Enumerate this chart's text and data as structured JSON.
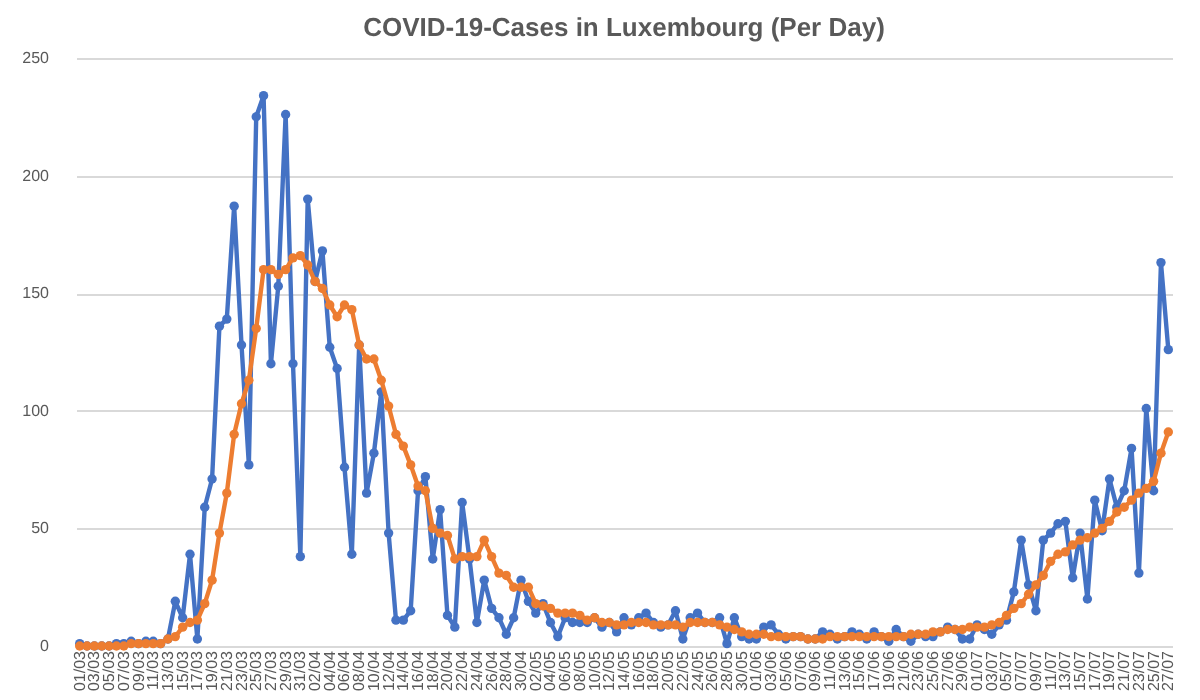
{
  "chart_data": {
    "type": "line",
    "title": "COVID-19-Cases in Luxembourg (Per Day)",
    "categories": [
      "01/03",
      null,
      "03/03",
      null,
      "05/03",
      null,
      "07/03",
      null,
      "09/03",
      null,
      "11/03",
      null,
      "13/03",
      null,
      "15/03",
      null,
      "17/03",
      null,
      "19/03",
      null,
      "21/03",
      null,
      "23/03",
      null,
      "25/03",
      null,
      "27/03",
      null,
      "29/03",
      null,
      "31/03",
      null,
      "02/04",
      null,
      "04/04",
      null,
      "06/04",
      null,
      "08/04",
      null,
      "10/04",
      null,
      "12/04",
      null,
      "14/04",
      null,
      "16/04",
      null,
      "18/04",
      null,
      "20/04",
      null,
      "22/04",
      null,
      "24/04",
      null,
      "26/04",
      null,
      "28/04",
      null,
      "30/04",
      null,
      "02/05",
      null,
      "04/05",
      null,
      "06/05",
      null,
      "08/05",
      null,
      "10/05",
      null,
      "12/05",
      null,
      "14/05",
      null,
      "16/05",
      null,
      "18/05",
      null,
      "20/05",
      null,
      "22/05",
      null,
      "24/05",
      null,
      "26/05",
      null,
      "28/05",
      null,
      "30/05",
      null,
      "01/06",
      null,
      "03/06",
      null,
      "05/06",
      null,
      "07/06",
      null,
      "09/06",
      null,
      "11/06",
      null,
      "13/06",
      null,
      "15/06",
      null,
      "17/06",
      null,
      "19/06",
      null,
      "21/06",
      null,
      "23/06",
      null,
      "25/06",
      null,
      "27/06",
      null,
      "29/06",
      null,
      "01/07",
      null,
      "03/07",
      null,
      "05/07",
      null,
      "07/07",
      null,
      "09/07",
      null,
      "11/07",
      null,
      "13/07",
      null,
      "15/07",
      null,
      "17/07",
      null,
      "19/07",
      null,
      "21/07",
      null,
      "23/07",
      null,
      "25/07",
      null,
      "27/07"
    ],
    "series": [
      {
        "color": "#4472c4",
        "values": [
          1,
          0,
          0,
          0,
          0,
          1,
          1,
          2,
          1,
          2,
          2,
          1,
          3,
          19,
          12,
          39,
          3,
          59,
          71,
          136,
          139,
          187,
          128,
          77,
          225,
          234,
          120,
          153,
          226,
          120,
          38,
          190,
          155,
          168,
          127,
          118,
          76,
          39,
          128,
          65,
          82,
          108,
          48,
          11,
          11,
          15,
          66,
          72,
          37,
          58,
          13,
          8,
          61,
          37,
          10,
          28,
          16,
          12,
          5,
          12,
          28,
          19,
          14,
          18,
          10,
          4,
          12,
          10,
          10,
          10,
          12,
          8,
          10,
          6,
          12,
          9,
          12,
          14,
          10,
          8,
          9,
          15,
          3,
          12,
          14,
          10,
          10,
          12,
          1,
          12,
          4,
          3,
          3,
          8,
          9,
          5,
          3,
          4,
          4,
          3,
          3,
          6,
          5,
          3,
          4,
          6,
          5,
          3,
          6,
          4,
          2,
          7,
          4,
          2,
          5,
          4,
          4,
          6,
          8,
          7,
          3,
          3,
          9,
          7,
          5,
          9,
          11,
          23,
          45,
          26,
          15,
          45,
          48,
          52,
          53,
          29,
          48,
          20,
          62,
          49,
          71,
          59,
          66,
          84,
          31,
          101,
          66,
          163,
          126
        ]
      },
      {
        "color": "#ed7d31",
        "values": [
          0,
          0,
          0,
          0,
          0,
          0,
          0,
          1,
          1,
          1,
          1,
          1,
          3,
          4,
          8,
          10,
          11,
          18,
          28,
          48,
          65,
          90,
          103,
          113,
          135,
          160,
          160,
          158,
          160,
          165,
          166,
          162,
          155,
          152,
          145,
          140,
          145,
          143,
          128,
          122,
          122,
          113,
          102,
          90,
          85,
          77,
          68,
          66,
          50,
          48,
          47,
          37,
          38,
          38,
          38,
          45,
          38,
          31,
          30,
          25,
          25,
          25,
          18,
          17,
          16,
          14,
          14,
          14,
          13,
          11,
          12,
          10,
          10,
          9,
          9,
          10,
          10,
          10,
          9,
          9,
          9,
          9,
          8,
          10,
          10,
          10,
          10,
          9,
          8,
          7,
          6,
          5,
          5,
          5,
          4,
          4,
          4,
          4,
          4,
          3,
          3,
          3,
          4,
          4,
          4,
          4,
          4,
          4,
          4,
          4,
          4,
          4,
          4,
          5,
          5,
          5,
          6,
          6,
          7,
          7,
          7,
          8,
          8,
          8,
          9,
          10,
          13,
          16,
          18,
          22,
          26,
          30,
          36,
          39,
          40,
          43,
          45,
          46,
          48,
          50,
          53,
          57,
          59,
          62,
          65,
          67,
          70,
          82,
          91
        ]
      }
    ],
    "ylim": [
      0,
      250
    ],
    "yticks": [
      0,
      50,
      100,
      150,
      200,
      250
    ],
    "grid": "y",
    "marker": "circle",
    "line_style": "solid"
  }
}
